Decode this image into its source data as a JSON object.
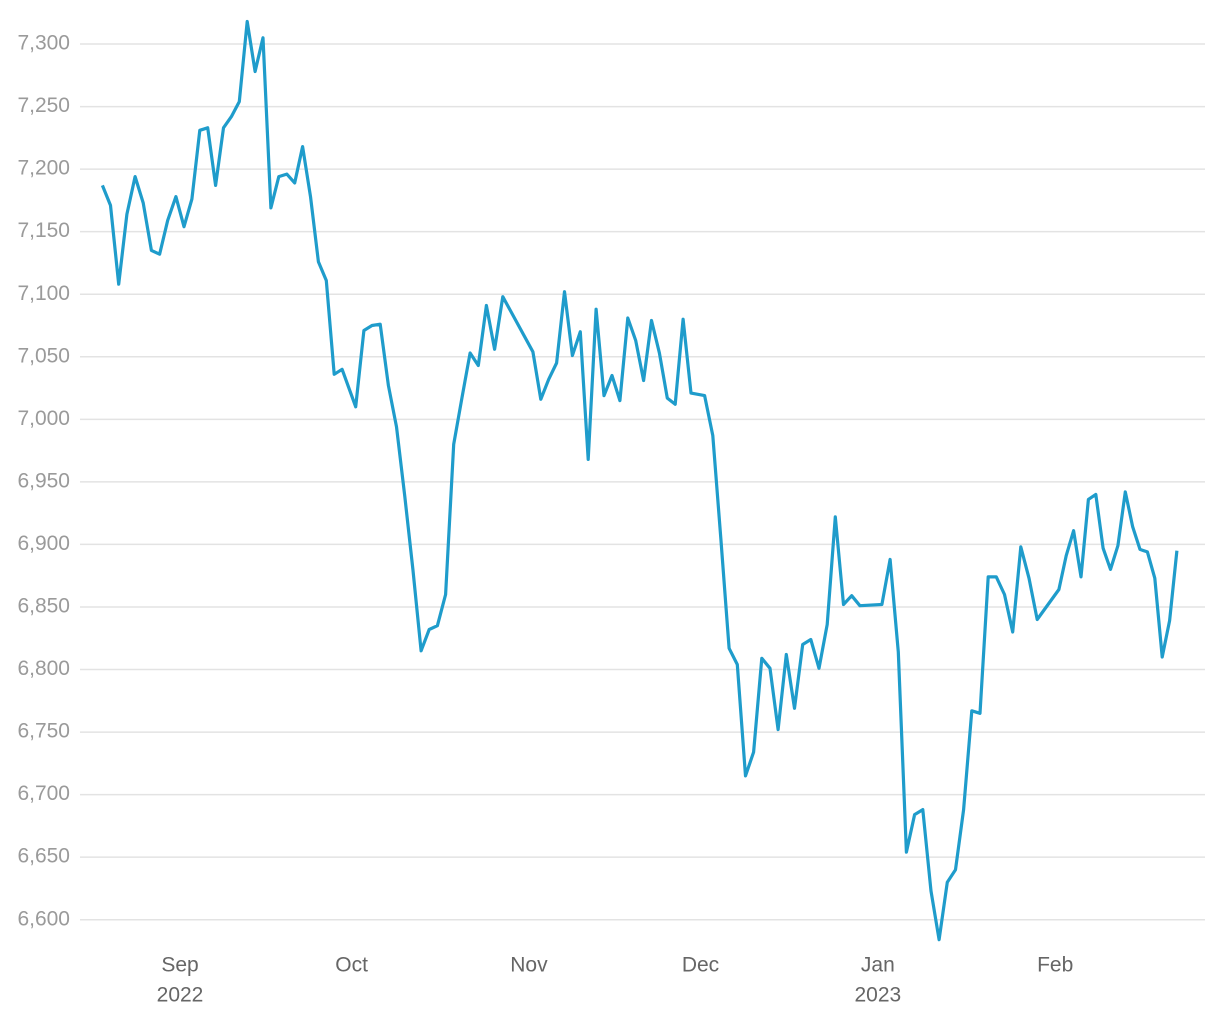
{
  "chart_data": {
    "type": "line",
    "color": "#1f9ccb",
    "grid": true,
    "ylim": [
      6575,
      7320
    ],
    "yticks": [
      {
        "value": 6600,
        "label": "6,600"
      },
      {
        "value": 6650,
        "label": "6,650"
      },
      {
        "value": 6700,
        "label": "6,700"
      },
      {
        "value": 6750,
        "label": "6,750"
      },
      {
        "value": 6800,
        "label": "6,800"
      },
      {
        "value": 6850,
        "label": "6,850"
      },
      {
        "value": 6900,
        "label": "6,900"
      },
      {
        "value": 6950,
        "label": "6,950"
      },
      {
        "value": 7000,
        "label": "7,000"
      },
      {
        "value": 7050,
        "label": "7,050"
      },
      {
        "value": 7100,
        "label": "7,100"
      },
      {
        "value": 7150,
        "label": "7,150"
      },
      {
        "value": 7200,
        "label": "7,200"
      },
      {
        "value": 7250,
        "label": "7,250"
      },
      {
        "value": 7300,
        "label": "7,300"
      }
    ],
    "xticks": [
      {
        "value": "2022-09",
        "label": "Sep"
      },
      {
        "value": "2022-10",
        "label": "Oct"
      },
      {
        "value": "2022-11",
        "label": "Nov"
      },
      {
        "value": "2022-12",
        "label": "Dec"
      },
      {
        "value": "2023-01",
        "label": "Jan"
      },
      {
        "value": "2023-02",
        "label": "Feb"
      }
    ],
    "x_year_labels": [
      {
        "value": "2022-09",
        "label": "2022"
      },
      {
        "value": "2023-01",
        "label": "2023"
      }
    ],
    "x": [
      "2022-08",
      "2022-08",
      "2022-08",
      "2022-08",
      "2022-08",
      "2022-08",
      "2022-08",
      "2022-08",
      "2022-08",
      "2022-08",
      "2022-09",
      "2022-09",
      "2022-09",
      "2022-09",
      "2022-09",
      "2022-09",
      "2022-09",
      "2022-09",
      "2022-09",
      "2022-09",
      "2022-09",
      "2022-09",
      "2022-09",
      "2022-09",
      "2022-09",
      "2022-09",
      "2022-09",
      "2022-09",
      "2022-09",
      "2022-09",
      "2022-09",
      "2022-10",
      "2022-10",
      "2022-10",
      "2022-10",
      "2022-10",
      "2022-10",
      "2022-10",
      "2022-10",
      "2022-10",
      "2022-10",
      "2022-10",
      "2022-10",
      "2022-10",
      "2022-10",
      "2022-10",
      "2022-10",
      "2022-10",
      "2022-10",
      "2022-10",
      "2022-11",
      "2022-11",
      "2022-11",
      "2022-11",
      "2022-11",
      "2022-11",
      "2022-11",
      "2022-11",
      "2022-11",
      "2022-11",
      "2022-11",
      "2022-11",
      "2022-11",
      "2022-11",
      "2022-11",
      "2022-11",
      "2022-11",
      "2022-11",
      "2022-11",
      "2022-11",
      "2022-11",
      "2022-12",
      "2022-12",
      "2022-12",
      "2022-12",
      "2022-12",
      "2022-12",
      "2022-12",
      "2022-12",
      "2022-12",
      "2022-12",
      "2022-12",
      "2022-12",
      "2022-12",
      "2022-12",
      "2022-12",
      "2022-12",
      "2022-12",
      "2022-12",
      "2022-12",
      "2022-12",
      "2023-01",
      "2023-01",
      "2023-01",
      "2023-01",
      "2023-01",
      "2023-01",
      "2023-01",
      "2023-01",
      "2023-01",
      "2023-01",
      "2023-01",
      "2023-01",
      "2023-01",
      "2023-01",
      "2023-01",
      "2023-01",
      "2023-01",
      "2023-01",
      "2023-01",
      "2023-01",
      "2023-02",
      "2023-02",
      "2023-02",
      "2023-02",
      "2023-02",
      "2023-02",
      "2023-02",
      "2023-02",
      "2023-02",
      "2023-02",
      "2023-02",
      "2023-02",
      "2023-02",
      "2023-02",
      "2023-02",
      "2023-02",
      "2023-02"
    ],
    "values": [
      7187,
      7171,
      7108,
      7164,
      7194,
      7173,
      7135,
      7132,
      7159,
      7178,
      7154,
      7176,
      7231,
      7233,
      7187,
      7233,
      7242,
      7254,
      7318,
      7278,
      7305,
      7169,
      7194,
      7196,
      7189,
      7218,
      7178,
      7126,
      7111,
      7036,
      7040,
      7010,
      7071,
      7075,
      7076,
      7027,
      6994,
      6939,
      6880,
      6815,
      6832,
      6835,
      6860,
      6980,
      7017,
      7053,
      7043,
      7091,
      7056,
      7098,
      7054,
      7016,
      7032,
      7045,
      7102,
      7051,
      7070,
      6968,
      7088,
      7019,
      7035,
      7015,
      7081,
      7063,
      7031,
      7079,
      7053,
      7017,
      7012,
      7080,
      7021,
      7019,
      6987,
      6904,
      6817,
      6804,
      6715,
      6734,
      6809,
      6801,
      6752,
      6812,
      6769,
      6820,
      6824,
      6801,
      6836,
      6922,
      6852,
      6859,
      6851,
      6852,
      6888,
      6814,
      6654,
      6684,
      6688,
      6623,
      6584,
      6630,
      6640,
      6688,
      6767,
      6765,
      6874,
      6874,
      6860,
      6830,
      6898,
      6873,
      6840,
      6864,
      6891,
      6911,
      6874,
      6936,
      6940,
      6897,
      6880,
      6899,
      6942,
      6914,
      6896,
      6894,
      6873,
      6810,
      6839,
      6895
    ]
  }
}
